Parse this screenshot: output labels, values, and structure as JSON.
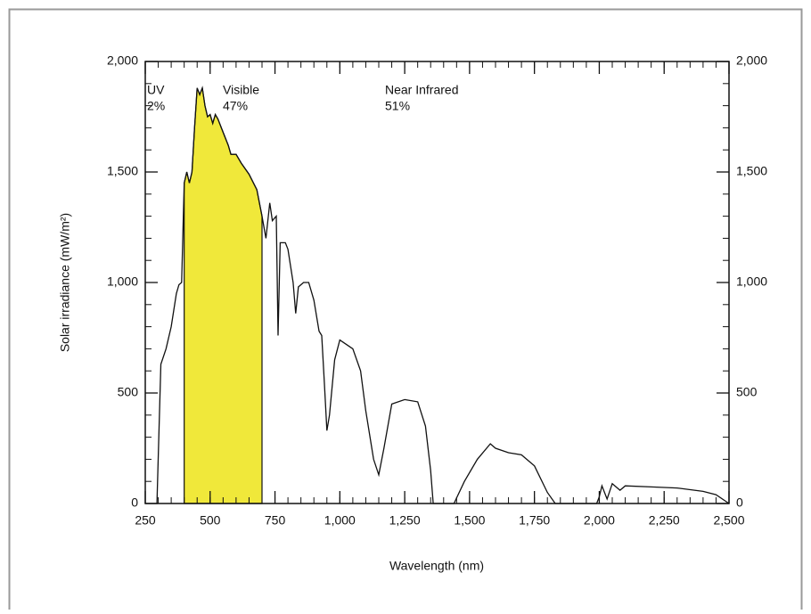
{
  "chart_data": {
    "type": "line",
    "x_label": "Wavelength (nm)",
    "y_label": "Solar irradiance (mW/m²)",
    "x": [
      295,
      310,
      330,
      350,
      370,
      380,
      390,
      400,
      410,
      420,
      430,
      440,
      450,
      460,
      470,
      480,
      490,
      500,
      510,
      520,
      530,
      550,
      570,
      580,
      600,
      620,
      650,
      680,
      700,
      715,
      730,
      740,
      755,
      762,
      770,
      790,
      800,
      820,
      830,
      840,
      860,
      880,
      900,
      920,
      930,
      940,
      950,
      960,
      980,
      1000,
      1050,
      1080,
      1100,
      1130,
      1150,
      1170,
      1200,
      1250,
      1300,
      1330,
      1350,
      1360,
      1400,
      1440,
      1480,
      1530,
      1580,
      1600,
      1650,
      1700,
      1750,
      1800,
      1830,
      1900,
      1950,
      1990,
      2000,
      2010,
      2030,
      2050,
      2080,
      2100,
      2200,
      2300,
      2400,
      2450,
      2500
    ],
    "y": [
      0,
      630,
      700,
      800,
      950,
      990,
      1000,
      1450,
      1500,
      1450,
      1500,
      1700,
      1880,
      1850,
      1880,
      1800,
      1750,
      1760,
      1720,
      1760,
      1740,
      1680,
      1620,
      1580,
      1580,
      1540,
      1490,
      1420,
      1300,
      1200,
      1360,
      1280,
      1300,
      760,
      1180,
      1180,
      1150,
      1000,
      860,
      980,
      1000,
      1000,
      920,
      780,
      760,
      550,
      330,
      400,
      650,
      740,
      700,
      600,
      420,
      200,
      130,
      250,
      450,
      470,
      460,
      350,
      150,
      0,
      0,
      0,
      100,
      200,
      270,
      250,
      230,
      220,
      170,
      50,
      0,
      0,
      0,
      0,
      30,
      80,
      20,
      90,
      60,
      80,
      75,
      70,
      55,
      40,
      0
    ],
    "color": "#111111",
    "shaded_region": {
      "range": [
        400,
        700
      ],
      "color": "#f0e83a"
    },
    "annotations": [
      {
        "text": "UV",
        "value": 2,
        "value_label": "2%"
      },
      {
        "text": "Visible",
        "value": 47,
        "value_label": "47%"
      },
      {
        "text": "Near Infrared",
        "value": 51,
        "value_label": "51%"
      }
    ],
    "xlim": [
      250,
      2500
    ],
    "xticks": [
      250,
      500,
      750,
      {
        "value": 1000,
        "label": "1,000"
      },
      {
        "value": 1250,
        "label": "1,250"
      },
      {
        "value": 1500,
        "label": "1,500"
      },
      {
        "value": 1750,
        "label": "1,750"
      },
      {
        "value": 2000,
        "label": "2,000"
      },
      {
        "value": 2250,
        "label": "2,250"
      },
      {
        "value": 2500,
        "label": "2,500"
      }
    ],
    "x_minor_step": 50,
    "ylim": [
      0,
      2000
    ],
    "yticks": [
      0,
      500,
      {
        "value": 1000,
        "label": "1,000"
      },
      {
        "value": 1500,
        "label": "1,500"
      },
      {
        "value": 2000,
        "label": "2,000"
      }
    ],
    "y_minor_step": 100,
    "y2lim": [
      0,
      2000
    ],
    "y2ticks": [
      0,
      500,
      {
        "value": 1000,
        "label": "1,000"
      },
      {
        "value": 1500,
        "label": "1,500"
      },
      {
        "value": 2000,
        "label": "2,000"
      }
    ]
  }
}
